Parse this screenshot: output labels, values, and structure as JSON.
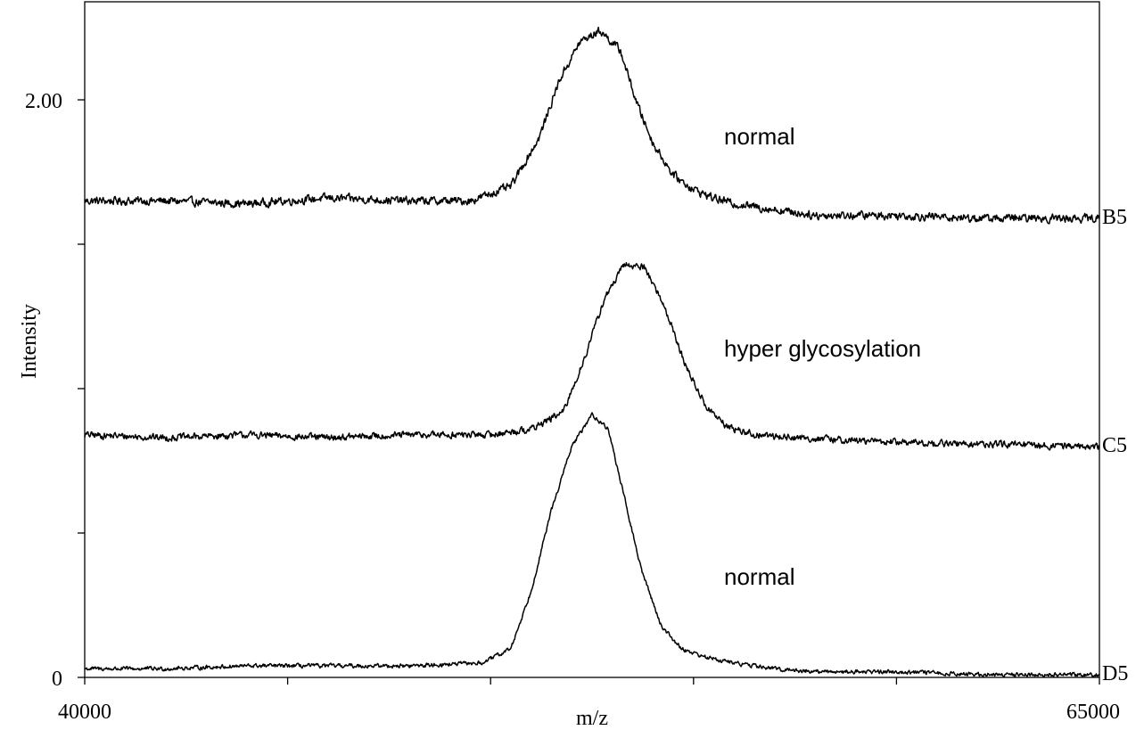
{
  "chart_data": {
    "type": "line",
    "title": "",
    "xlabel": "m/z",
    "ylabel": "Intensity",
    "xlim": [
      40000,
      65000
    ],
    "ylim": [
      0,
      2.3
    ],
    "x_tick_labels": [
      "40000",
      "65000"
    ],
    "y_tick_labels": [
      "0",
      "2.00"
    ],
    "x_ticks": [
      40000,
      45000,
      50000,
      55000,
      60000,
      65000
    ],
    "y_ticks": [
      0,
      0.5,
      1.0,
      1.5,
      2.0
    ],
    "grid": false,
    "line_color": "#000000",
    "series": [
      {
        "name": "B5",
        "annotation": "normal",
        "x": [
          40000,
          42000,
          44000,
          46000,
          48000,
          49500,
          50500,
          51200,
          51700,
          52200,
          52700,
          53200,
          53600,
          54000,
          54500,
          55000,
          55500,
          56000,
          57000,
          58000,
          60000,
          62000,
          65000
        ],
        "y": [
          1.65,
          1.65,
          1.64,
          1.66,
          1.65,
          1.65,
          1.7,
          1.87,
          2.07,
          2.2,
          2.24,
          2.17,
          1.99,
          1.85,
          1.74,
          1.69,
          1.66,
          1.64,
          1.62,
          1.6,
          1.6,
          1.59,
          1.59
        ],
        "noise": 0.012
      },
      {
        "name": "C5",
        "annotation": "hyper glycosylation",
        "x": [
          40000,
          42000,
          44000,
          46000,
          48000,
          50000,
          51000,
          51800,
          52300,
          52800,
          53300,
          53800,
          54300,
          54800,
          55300,
          55800,
          56500,
          57500,
          59000,
          61000,
          65000
        ],
        "y": [
          0.84,
          0.83,
          0.84,
          0.83,
          0.84,
          0.84,
          0.86,
          0.92,
          1.1,
          1.31,
          1.43,
          1.42,
          1.28,
          1.08,
          0.94,
          0.87,
          0.84,
          0.83,
          0.82,
          0.81,
          0.8
        ],
        "noise": 0.01
      },
      {
        "name": "D5",
        "annotation": "normal",
        "x": [
          40000,
          42000,
          44000,
          46000,
          48000,
          49800,
          50500,
          51000,
          51500,
          52000,
          52500,
          52900,
          53300,
          53700,
          54200,
          54700,
          55300,
          56000,
          57000,
          58000,
          60000,
          62000,
          65000
        ],
        "y": [
          0.03,
          0.03,
          0.04,
          0.04,
          0.04,
          0.05,
          0.1,
          0.3,
          0.58,
          0.8,
          0.91,
          0.86,
          0.62,
          0.38,
          0.18,
          0.1,
          0.07,
          0.05,
          0.03,
          0.02,
          0.02,
          0.01,
          0.01
        ],
        "noise": 0.006
      }
    ]
  }
}
